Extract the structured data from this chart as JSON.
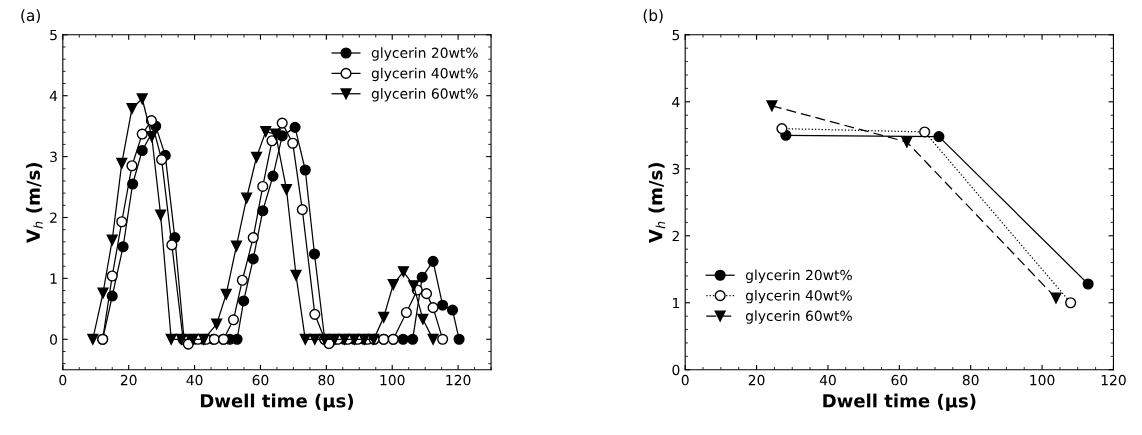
{
  "chart_data": [
    {
      "type": "line",
      "title": "(a)",
      "xlabel": "Dwell time (µs)",
      "ylabel": "V$_{h}$ (m/s)",
      "xlim": [
        0,
        130
      ],
      "ylim": [
        -0.5,
        5
      ],
      "xticks": [
        0,
        20,
        40,
        60,
        80,
        100,
        120
      ],
      "yticks": [
        0,
        1,
        2,
        3,
        4,
        5
      ],
      "legend": "top right",
      "grid": false,
      "series": [
        {
          "name": "glycerin 20wt%",
          "color": "#000000",
          "marker": "circle",
          "line_style": "solid",
          "x": [
            12.1,
            15.0,
            18.3,
            21.2,
            24.1,
            28.2,
            31.1,
            34.0,
            36.8,
            39.7,
            42.7,
            45.7,
            48.7,
            50.7,
            52.9,
            54.9,
            57.8,
            60.7,
            63.8,
            66.6,
            70.5,
            73.6,
            76.4,
            79.5,
            82.5,
            85.5,
            88.5,
            91.5,
            94.5,
            97.4,
            100.3,
            103.3,
            106.2,
            109.1,
            112.4,
            115.3,
            118.3,
            120.3
          ],
          "values": [
            0,
            0.71,
            1.52,
            2.55,
            3.1,
            3.5,
            3.02,
            1.67,
            0,
            0,
            0,
            0,
            0,
            0,
            0,
            0.63,
            1.32,
            2.11,
            2.68,
            3.34,
            3.48,
            2.78,
            1.4,
            0,
            0,
            0,
            0,
            0,
            0,
            0,
            0,
            0,
            0,
            1.02,
            1.28,
            0.56,
            0.48,
            0
          ]
        },
        {
          "name": "glycerin 40wt%",
          "color": "#ffffff",
          "marker": "circle",
          "line_style": "solid",
          "x": [
            12.1,
            15.0,
            17.9,
            21.0,
            24.1,
            26.9,
            30.0,
            33.1,
            36.5,
            38.1,
            41.0,
            43.5,
            46.0,
            48.8,
            51.8,
            54.5,
            57.8,
            60.7,
            63.5,
            66.6,
            69.8,
            72.7,
            76.5,
            79.5,
            80.8,
            83.5,
            86.5,
            89.5,
            92.5,
            94.5,
            97.4,
            100.3,
            104.3,
            107.6,
            110.4,
            112.4,
            115.3
          ],
          "values": [
            0,
            1.04,
            1.93,
            2.85,
            3.37,
            3.59,
            2.95,
            1.55,
            0,
            -0.08,
            0,
            0,
            0,
            0,
            0.32,
            0.97,
            1.67,
            2.51,
            3.26,
            3.55,
            3.22,
            2.13,
            0.41,
            0,
            -0.07,
            0,
            0,
            0,
            0,
            0,
            0,
            0,
            0.44,
            0.81,
            0.75,
            0.52,
            0
          ]
        },
        {
          "name": "glycerin 60wt%",
          "color": "#000000",
          "marker": "triangle",
          "line_style": "solid",
          "x": [
            9.1,
            12.2,
            15.0,
            17.9,
            21.0,
            24.1,
            27.0,
            29.7,
            32.9,
            36.0,
            39.5,
            42.8,
            46.7,
            49.6,
            52.7,
            55.8,
            58.8,
            61.6,
            64.6,
            67.9,
            70.8,
            73.6,
            76.5,
            79.5,
            82.5,
            85.5,
            88.5,
            91.5,
            94.4,
            97.4,
            100.3,
            103.4,
            106.5,
            109.3,
            112.4
          ],
          "values": [
            0,
            0.76,
            1.63,
            2.89,
            3.79,
            3.95,
            3.33,
            2.04,
            0,
            0,
            0,
            0,
            0.25,
            0.74,
            1.53,
            2.32,
            2.99,
            3.41,
            3.37,
            2.46,
            1.05,
            0,
            0,
            0,
            0,
            0,
            0,
            0,
            0,
            0.36,
            0.9,
            1.11,
            0.88,
            0.33,
            0
          ]
        }
      ]
    },
    {
      "type": "line",
      "title": "(b)",
      "xlabel": "Dwell time (µs)",
      "ylabel": "V$_{h}$ (m/s)",
      "xlim": [
        0,
        120
      ],
      "ylim": [
        0,
        5
      ],
      "xticks": [
        0,
        20,
        40,
        60,
        80,
        100,
        120
      ],
      "yticks": [
        0,
        1,
        2,
        3,
        4,
        5
      ],
      "legend": "bottom left",
      "grid": false,
      "series": [
        {
          "name": "glycerin 20wt%",
          "color": "#000000",
          "marker": "circle",
          "line_style": "solid",
          "x": [
            28.2,
            71.1,
            112.9
          ],
          "values": [
            3.5,
            3.48,
            1.28
          ]
        },
        {
          "name": "glycerin 40wt%",
          "color": "#ffffff",
          "marker": "circle",
          "line_style": "dotted",
          "x": [
            27.1,
            67.1,
            108.0
          ],
          "values": [
            3.6,
            3.55,
            1.0
          ]
        },
        {
          "name": "glycerin 60wt%",
          "color": "#000000",
          "marker": "triangle",
          "line_style": "dashed",
          "x": [
            24.3,
            62.1,
            103.9
          ],
          "values": [
            3.94,
            3.4,
            1.07
          ]
        }
      ]
    }
  ]
}
